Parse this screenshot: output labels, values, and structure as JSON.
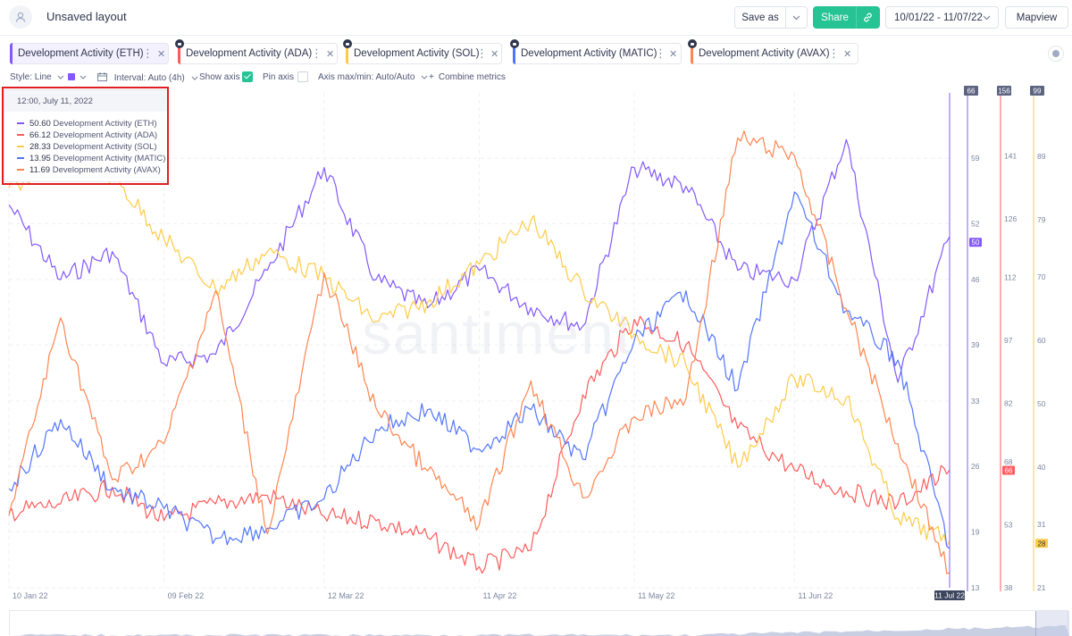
{
  "header": {
    "title": "Unsaved layout",
    "save_as_label": "Save as",
    "share_label": "Share",
    "date_range": "10/01/22 - 11/07/22",
    "mapview_label": "Mapview"
  },
  "metrics": [
    {
      "label": "Development Activity (ETH)",
      "color": "#8358ff",
      "locked": false,
      "active": true
    },
    {
      "label": "Development Activity (ADA)",
      "color": "#ff5b5b",
      "locked": true,
      "active": false
    },
    {
      "label": "Development Activity (SOL)",
      "color": "#ffcb47",
      "locked": true,
      "active": false
    },
    {
      "label": "Development Activity (MATIC)",
      "color": "#5275ff",
      "locked": true,
      "active": false
    },
    {
      "label": "Development Activity (AVAX)",
      "color": "#ff8450",
      "locked": true,
      "active": false
    }
  ],
  "options": {
    "style_label": "Style: Line",
    "interval_label": "Interval: Auto (4h)",
    "show_axis_label": "Show axis",
    "pin_axis_label": "Pin axis",
    "axis_minmax_label": "Axis max/min: Auto/Auto",
    "combine_label": "Combine metrics"
  },
  "tooltip": {
    "date": "12:00, July 11, 2022",
    "rows": [
      {
        "value": "50.60",
        "label": "Development Activity (ETH)",
        "color": "#8358ff"
      },
      {
        "value": "66.12",
        "label": "Development Activity (ADA)",
        "color": "#ff5b5b"
      },
      {
        "value": "28.33",
        "label": "Development Activity (SOL)",
        "color": "#ffcb47"
      },
      {
        "value": "13.95",
        "label": "Development Activity (MATIC)",
        "color": "#5275ff"
      },
      {
        "value": "11.69",
        "label": "Development Activity (AVAX)",
        "color": "#ff8450"
      }
    ]
  },
  "watermark": "santiment",
  "chart_data": {
    "type": "line",
    "x_ticks": [
      "10 Jan 22",
      "09 Feb 22",
      "12 Mar 22",
      "11 Apr 22",
      "11 May 22",
      "11 Jun 22"
    ],
    "cursor_label": "11 Jul 22",
    "x_range": [
      "2022-01-10",
      "2022-07-11"
    ],
    "grid": true,
    "axes": [
      {
        "series": "ETH",
        "color": "#8358ff",
        "ticks": [
          "59",
          "52",
          "46",
          "39",
          "33",
          "26",
          "19",
          "13"
        ],
        "top_label": "66",
        "current": "50",
        "range": [
          13,
          66
        ]
      },
      {
        "series": "ADA",
        "color": "#ff5b5b",
        "ticks": [
          "141",
          "126",
          "112",
          "97",
          "82",
          "68",
          "53",
          "38"
        ],
        "top_label": "156",
        "current": "66",
        "range": [
          38,
          156
        ]
      },
      {
        "series": "SOL",
        "color": "#ffcb47",
        "ticks": [
          "89",
          "79",
          "70",
          "60",
          "50",
          "40",
          "31",
          "21"
        ],
        "top_label": "99",
        "current": "28",
        "range": [
          21,
          99
        ]
      }
    ],
    "series": [
      {
        "name": "Development Activity (ETH)",
        "color": "#8358ff",
        "x": [
          "2022-01-10",
          "2022-01-20",
          "2022-01-30",
          "2022-02-09",
          "2022-02-19",
          "2022-03-01",
          "2022-03-12",
          "2022-03-22",
          "2022-04-01",
          "2022-04-11",
          "2022-04-21",
          "2022-05-01",
          "2022-05-11",
          "2022-05-21",
          "2022-05-31",
          "2022-06-11",
          "2022-06-21",
          "2022-07-01",
          "2022-07-11"
        ],
        "values": [
          54,
          46,
          49,
          37,
          38,
          47,
          58,
          46,
          43,
          47,
          43,
          41,
          58,
          56,
          47,
          46,
          61,
          35,
          50.6
        ]
      },
      {
        "name": "Development Activity (ADA)",
        "color": "#ff5b5b",
        "x": [
          "2022-01-10",
          "2022-01-20",
          "2022-01-30",
          "2022-02-09",
          "2022-02-19",
          "2022-03-01",
          "2022-03-12",
          "2022-03-22",
          "2022-04-01",
          "2022-04-11",
          "2022-04-21",
          "2022-05-01",
          "2022-05-11",
          "2022-05-21",
          "2022-05-31",
          "2022-06-11",
          "2022-06-21",
          "2022-07-01",
          "2022-07-11"
        ],
        "values": [
          56,
          58,
          62,
          54,
          58,
          60,
          55,
          54,
          50,
          43,
          47,
          84,
          102,
          96,
          76,
          66,
          61,
          58,
          66.12
        ]
      },
      {
        "name": "Development Activity (SOL)",
        "color": "#ffcb47",
        "x": [
          "2022-01-10",
          "2022-01-20",
          "2022-01-30",
          "2022-02-09",
          "2022-02-19",
          "2022-03-01",
          "2022-03-12",
          "2022-03-22",
          "2022-04-01",
          "2022-04-11",
          "2022-04-21",
          "2022-05-01",
          "2022-05-11",
          "2022-05-21",
          "2022-05-31",
          "2022-06-11",
          "2022-06-21",
          "2022-07-01",
          "2022-07-11"
        ],
        "values": [
          84,
          88,
          86,
          76,
          68,
          74,
          70,
          63,
          66,
          72,
          79,
          68,
          61,
          56,
          40,
          54,
          51,
          32,
          28.33
        ]
      },
      {
        "name": "Development Activity (MATIC)",
        "color": "#5275ff",
        "x": [
          "2022-01-10",
          "2022-01-20",
          "2022-01-30",
          "2022-02-09",
          "2022-02-19",
          "2022-03-01",
          "2022-03-12",
          "2022-03-22",
          "2022-04-01",
          "2022-04-11",
          "2022-04-21",
          "2022-05-01",
          "2022-05-11",
          "2022-05-21",
          "2022-05-31",
          "2022-06-11",
          "2022-06-21",
          "2022-07-01",
          "2022-07-11"
        ],
        "values": [
          20,
          27,
          20,
          18,
          15,
          16,
          19,
          26,
          28,
          24,
          28,
          23,
          35,
          40,
          30,
          50,
          38,
          33,
          13.95
        ]
      },
      {
        "name": "Development Activity (AVAX)",
        "color": "#ff8450",
        "x": [
          "2022-01-10",
          "2022-01-20",
          "2022-01-30",
          "2022-02-09",
          "2022-02-19",
          "2022-03-01",
          "2022-03-12",
          "2022-03-22",
          "2022-04-01",
          "2022-04-11",
          "2022-04-21",
          "2022-05-01",
          "2022-05-11",
          "2022-05-21",
          "2022-05-31",
          "2022-06-11",
          "2022-06-21",
          "2022-07-01",
          "2022-07-11"
        ],
        "values": [
          18,
          40,
          22,
          26,
          43,
          16,
          45,
          30,
          23,
          17,
          33,
          20,
          29,
          31,
          60,
          58,
          41,
          26,
          11.69
        ]
      }
    ]
  }
}
